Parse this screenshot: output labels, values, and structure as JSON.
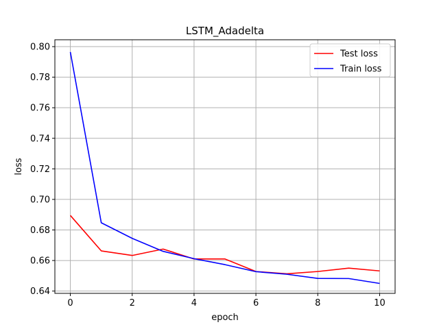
{
  "chart_data": {
    "type": "line",
    "title": "LSTM_Adadelta",
    "xlabel": "epoch",
    "ylabel": "loss",
    "xlim": [
      -0.5,
      10.5
    ],
    "ylim": [
      0.6385,
      0.8045
    ],
    "xticks": [
      0,
      2,
      4,
      6,
      8,
      10
    ],
    "xtick_labels": [
      "0",
      "2",
      "4",
      "6",
      "8",
      "10"
    ],
    "yticks": [
      0.64,
      0.66,
      0.68,
      0.7,
      0.72,
      0.74,
      0.76,
      0.78,
      0.8
    ],
    "ytick_labels": [
      "0.64",
      "0.66",
      "0.68",
      "0.70",
      "0.72",
      "0.74",
      "0.76",
      "0.78",
      "0.80"
    ],
    "grid": true,
    "legend_position": "top-right",
    "x": [
      0,
      1,
      2,
      3,
      4,
      5,
      6,
      7,
      8,
      9,
      10
    ],
    "series": [
      {
        "name": "Test loss",
        "color": "#ff0000",
        "values": [
          0.6895,
          0.6663,
          0.6633,
          0.6675,
          0.661,
          0.661,
          0.6528,
          0.6513,
          0.6528,
          0.655,
          0.6532
        ]
      },
      {
        "name": "Train loss",
        "color": "#0000ff",
        "values": [
          0.7965,
          0.6847,
          0.6745,
          0.666,
          0.6612,
          0.6573,
          0.6527,
          0.651,
          0.6483,
          0.6482,
          0.645
        ]
      }
    ]
  }
}
